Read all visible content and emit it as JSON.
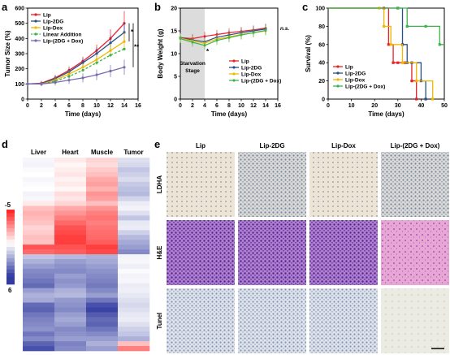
{
  "panel_letters": [
    "a",
    "b",
    "c",
    "d",
    "e"
  ],
  "chart_data": [
    {
      "id": "a",
      "type": "line",
      "xlabel": "Time (days)",
      "ylabel": "Tumor Size (%)",
      "xlim": [
        0,
        16
      ],
      "ylim": [
        0,
        600
      ],
      "xticks": [
        0,
        2,
        4,
        6,
        8,
        10,
        12,
        14,
        16
      ],
      "yticks": [
        0,
        100,
        200,
        300,
        400,
        500,
        600
      ],
      "x": [
        0,
        2,
        4,
        6,
        8,
        10,
        12,
        14
      ],
      "legend_position": "top-left",
      "series": [
        {
          "name": "Lip",
          "color": "#e8202a",
          "dash": false,
          "values": [
            100,
            105,
            140,
            190,
            250,
            320,
            400,
            500
          ],
          "err": [
            10,
            15,
            20,
            25,
            30,
            40,
            60,
            80
          ]
        },
        {
          "name": "Lip-2DG",
          "color": "#2b4f8c",
          "dash": false,
          "values": [
            100,
            102,
            135,
            180,
            240,
            300,
            370,
            440
          ],
          "err": [
            10,
            15,
            20,
            25,
            30,
            40,
            50,
            70
          ]
        },
        {
          "name": "Lip-Dox",
          "color": "#f0b800",
          "dash": false,
          "values": [
            100,
            100,
            125,
            165,
            210,
            260,
            320,
            380
          ],
          "err": [
            10,
            12,
            18,
            22,
            28,
            35,
            45,
            60
          ]
        },
        {
          "name": "Linear Addition",
          "color": "#3bb54a",
          "dash": true,
          "values": [
            100,
            100,
            118,
            150,
            190,
            240,
            290,
            330
          ],
          "err": [
            0,
            0,
            0,
            0,
            0,
            0,
            0,
            0
          ]
        },
        {
          "name": "Lip-(2DG + Dox)",
          "color": "#7a6bb0",
          "dash": false,
          "values": [
            100,
            100,
            110,
            125,
            140,
            160,
            185,
            210
          ],
          "err": [
            10,
            15,
            20,
            25,
            30,
            35,
            40,
            50
          ]
        }
      ],
      "annotations": [
        "*",
        "**"
      ]
    },
    {
      "id": "b",
      "type": "line",
      "xlabel": "Time (days)",
      "ylabel": "Body Weight (g)",
      "xlim": [
        0,
        16
      ],
      "ylim": [
        0,
        20
      ],
      "xticks": [
        0,
        2,
        4,
        6,
        8,
        10,
        12,
        14,
        16
      ],
      "yticks": [
        0,
        5,
        10,
        15,
        20
      ],
      "x": [
        0,
        2,
        4,
        6,
        8,
        10,
        12,
        14
      ],
      "shaded_region": {
        "x": [
          0,
          4
        ],
        "label_line1": "Starvation",
        "label_line2": "Stage"
      },
      "legend_position": "bottom-right",
      "series": [
        {
          "name": "Lip",
          "color": "#e8202a",
          "values": [
            13.5,
            13.3,
            13.8,
            14.2,
            14.6,
            14.9,
            15.2,
            15.6
          ]
        },
        {
          "name": "Lip-2DG",
          "color": "#2b4f8c",
          "values": [
            13.5,
            13.0,
            12.6,
            13.6,
            14.1,
            14.6,
            15.0,
            15.4
          ]
        },
        {
          "name": "Lip-Dox",
          "color": "#f0b800",
          "values": [
            13.4,
            12.8,
            12.3,
            13.2,
            13.7,
            14.2,
            14.6,
            15.0
          ]
        },
        {
          "name": "Lip-(2DG + Dox)",
          "color": "#3bb54a",
          "values": [
            13.3,
            12.5,
            11.8,
            12.9,
            13.5,
            14.1,
            14.6,
            15.1
          ]
        }
      ],
      "annotations": [
        "*",
        "n.s."
      ]
    },
    {
      "id": "c",
      "type": "line",
      "xlabel": "Time (days)",
      "ylabel": "Survival (%)",
      "xlim": [
        0,
        50
      ],
      "ylim": [
        0,
        100
      ],
      "xticks": [
        0,
        10,
        20,
        30,
        40,
        50
      ],
      "yticks": [
        0,
        20,
        40,
        60,
        80,
        100
      ],
      "legend_position": "bottom-left",
      "series": [
        {
          "name": "Lip",
          "color": "#e8202a",
          "x": [
            0,
            24,
            26,
            28,
            30,
            33,
            36,
            38
          ],
          "values": [
            100,
            100,
            60,
            40,
            40,
            40,
            20,
            0
          ]
        },
        {
          "name": "Lip-2DG",
          "color": "#2b4f8c",
          "x": [
            0,
            30,
            32,
            34,
            36,
            40,
            42
          ],
          "values": [
            100,
            100,
            60,
            40,
            40,
            20,
            0
          ]
        },
        {
          "name": "Lip-Dox",
          "color": "#f0b800",
          "x": [
            0,
            22,
            24,
            27,
            32,
            38,
            45
          ],
          "values": [
            100,
            100,
            80,
            60,
            40,
            20,
            0
          ]
        },
        {
          "name": "Lip-(2DG + Dox)",
          "color": "#3bb54a",
          "x": [
            0,
            30,
            34,
            42,
            48,
            55
          ],
          "values": [
            100,
            100,
            80,
            80,
            60,
            60
          ]
        }
      ]
    },
    {
      "id": "d",
      "type": "heatmap",
      "columns": [
        "Liver",
        "Heart",
        "Muscle",
        "Tumor"
      ],
      "scale_labels": [
        "-5",
        "6"
      ],
      "rows": 40,
      "values": [
        [
          0.2,
          -0.5,
          -1.0,
          0.8
        ],
        [
          0.3,
          -0.2,
          -0.8,
          1.0
        ],
        [
          0.1,
          -0.4,
          -1.2,
          1.5
        ],
        [
          0.0,
          -0.6,
          -1.5,
          1.2
        ],
        [
          0.2,
          -0.3,
          -2.0,
          0.9
        ],
        [
          0.1,
          -0.5,
          -2.2,
          1.4
        ],
        [
          0.0,
          -0.2,
          -1.8,
          1.6
        ],
        [
          0.3,
          -0.8,
          -2.5,
          1.8
        ],
        [
          0.2,
          -0.6,
          -2.2,
          1.1
        ],
        [
          -0.5,
          -1.0,
          -1.5,
          0.5
        ],
        [
          -1.5,
          -2.0,
          -2.5,
          0.3
        ],
        [
          -1.8,
          -2.5,
          -3.0,
          0.8
        ],
        [
          -1.6,
          -3.0,
          -3.2,
          1.5
        ],
        [
          -1.4,
          -3.5,
          -3.0,
          0.6
        ],
        [
          -1.0,
          -4.0,
          -3.2,
          0.5
        ],
        [
          -1.2,
          -4.2,
          -3.4,
          1.2
        ],
        [
          -1.5,
          -4.5,
          -3.5,
          1.8
        ],
        [
          -1.4,
          -4.5,
          -3.8,
          2.2
        ],
        [
          -4.0,
          -4.0,
          -4.5,
          2.5
        ],
        [
          -3.5,
          -3.8,
          -4.2,
          3.0
        ],
        [
          1.5,
          1.8,
          2.0,
          0.3
        ],
        [
          2.0,
          2.5,
          2.2,
          0.2
        ],
        [
          2.5,
          2.8,
          2.5,
          0.4
        ],
        [
          3.0,
          3.0,
          2.8,
          0.1
        ],
        [
          3.2,
          2.5,
          3.0,
          0.3
        ],
        [
          3.5,
          2.8,
          3.2,
          0.2
        ],
        [
          3.8,
          2.6,
          3.4,
          0.5
        ],
        [
          2.5,
          2.0,
          3.0,
          0.4
        ],
        [
          2.0,
          1.8,
          2.5,
          0.6
        ],
        [
          2.2,
          2.6,
          3.5,
          0.8
        ],
        [
          3.8,
          2.8,
          4.5,
          1.0
        ],
        [
          4.0,
          3.0,
          4.8,
          0.8
        ],
        [
          3.5,
          2.5,
          4.2,
          0.6
        ],
        [
          3.2,
          2.2,
          3.8,
          0.5
        ],
        [
          3.0,
          2.5,
          4.0,
          0.8
        ],
        [
          2.8,
          3.0,
          3.5,
          1.2
        ],
        [
          3.5,
          2.8,
          3.0,
          1.5
        ],
        [
          3.0,
          2.5,
          2.5,
          2.0
        ],
        [
          4.0,
          3.2,
          2.0,
          -1.5
        ],
        [
          4.5,
          3.0,
          2.5,
          -3.0
        ]
      ]
    }
  ],
  "panel_e": {
    "columns": [
      "Lip",
      "Lip-2DG",
      "Lip-Dox",
      "Lip-(2DG + Dox)"
    ],
    "rows": [
      "LDHA",
      "H&E",
      "Tunel"
    ]
  }
}
